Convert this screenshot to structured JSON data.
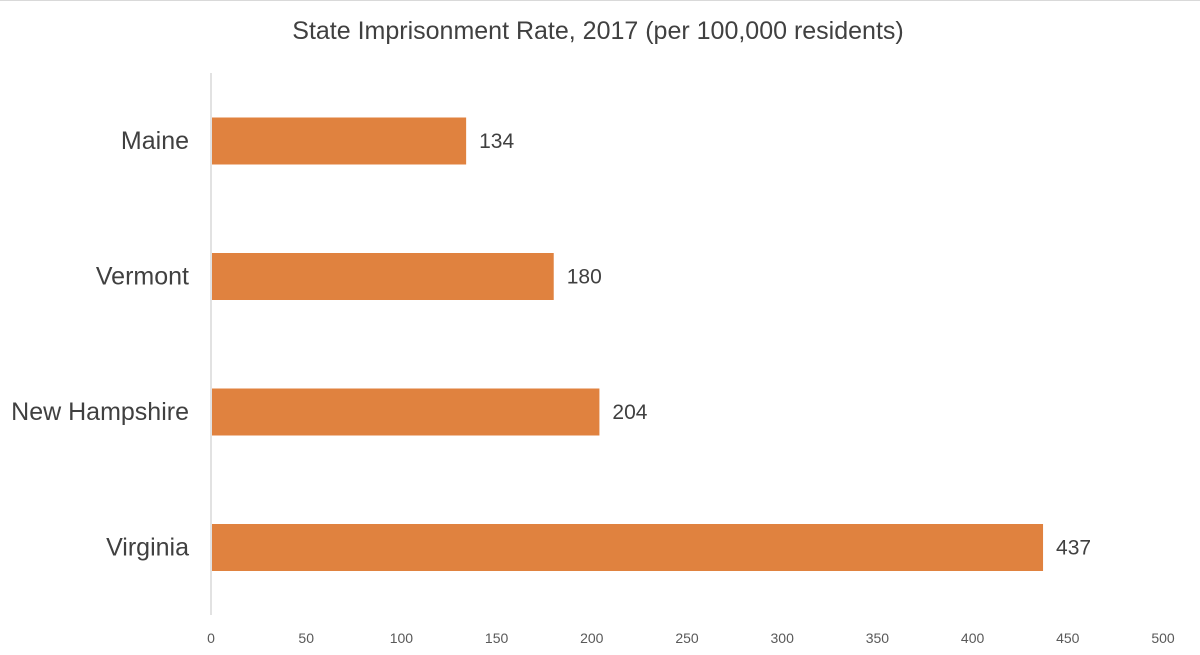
{
  "chart_data": {
    "type": "bar",
    "orientation": "horizontal",
    "title": "State Imprisonment Rate, 2017 (per 100,000 residents)",
    "categories": [
      "Maine",
      "Vermont",
      "New Hampshire",
      "Virginia"
    ],
    "values": [
      134,
      180,
      204,
      437
    ],
    "data_labels": [
      "134",
      "180",
      "204",
      "437"
    ],
    "xlim": [
      0,
      500
    ],
    "x_ticks": [
      0,
      50,
      100,
      150,
      200,
      250,
      300,
      350,
      400,
      450,
      500
    ],
    "xlabel": "",
    "ylabel": "",
    "grid": false,
    "legend": "none",
    "bar_color": "#E0823F",
    "axis_line_color": "#d9d9d9",
    "text_color": "#404040"
  }
}
